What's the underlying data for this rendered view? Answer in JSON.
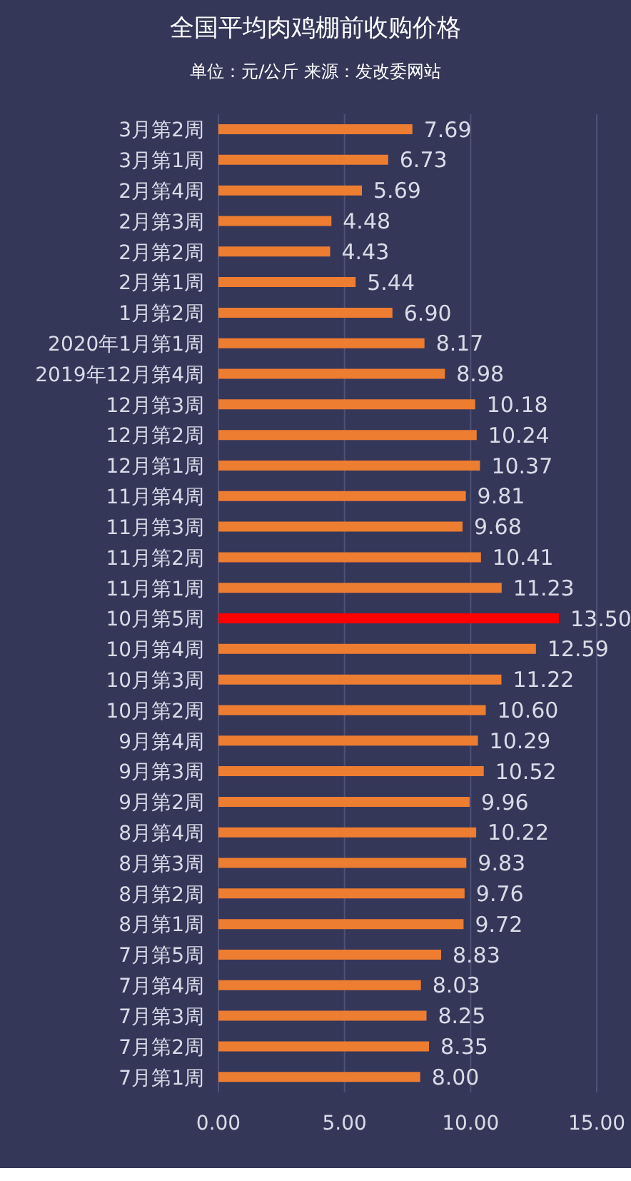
{
  "chart_data": {
    "type": "bar",
    "orientation": "horizontal",
    "title": "全国平均肉鸡棚前收购价格",
    "subtitle": "单位：元/公斤 来源：发改委网站",
    "categories": [
      "3月第2周",
      "3月第1周",
      "2月第4周",
      "2月第3周",
      "2月第2周",
      "2月第1周",
      "1月第2周",
      "2020年1月第1周",
      "2019年12月第4周",
      "12月第3周",
      "12月第2周",
      "12月第1周",
      "11月第4周",
      "11月第3周",
      "11月第2周",
      "11月第1周",
      "10月第5周",
      "10月第4周",
      "10月第3周",
      "10月第2周",
      "9月第4周",
      "9月第3周",
      "9月第2周",
      "8月第4周",
      "8月第3周",
      "8月第2周",
      "8月第1周",
      "7月第5周",
      "7月第4周",
      "7月第3周",
      "7月第2周",
      "7月第1周"
    ],
    "values": [
      7.69,
      6.73,
      5.69,
      4.48,
      4.43,
      5.44,
      6.9,
      8.17,
      8.98,
      10.18,
      10.24,
      10.37,
      9.81,
      9.68,
      10.41,
      11.23,
      13.5,
      12.59,
      11.22,
      10.6,
      10.29,
      10.52,
      9.96,
      10.22,
      9.83,
      9.76,
      9.72,
      8.83,
      8.03,
      8.25,
      8.35,
      8.0
    ],
    "value_labels": [
      "7.69",
      "6.73",
      "5.69",
      "4.48",
      "4.43",
      "5.44",
      "6.90",
      "8.17",
      "8.98",
      "10.18",
      "10.24",
      "10.37",
      "9.81",
      "9.68",
      "10.41",
      "11.23",
      "13.50",
      "12.59",
      "11.22",
      "10.60",
      "10.29",
      "10.52",
      "9.96",
      "10.22",
      "9.83",
      "9.76",
      "9.72",
      "8.83",
      "8.03",
      "8.25",
      "8.35",
      "8.00"
    ],
    "colors": [
      "#ed7d31",
      "#ed7d31",
      "#ed7d31",
      "#ed7d31",
      "#ed7d31",
      "#ed7d31",
      "#ed7d31",
      "#ed7d31",
      "#ed7d31",
      "#ed7d31",
      "#ed7d31",
      "#ed7d31",
      "#ed7d31",
      "#ed7d31",
      "#ed7d31",
      "#ed7d31",
      "#ff0000",
      "#ed7d31",
      "#ed7d31",
      "#ed7d31",
      "#ed7d31",
      "#ed7d31",
      "#ed7d31",
      "#ed7d31",
      "#ed7d31",
      "#ed7d31",
      "#ed7d31",
      "#ed7d31",
      "#ed7d31",
      "#ed7d31",
      "#ed7d31",
      "#ed7d31"
    ],
    "xlim": [
      0,
      15
    ],
    "xticks": [
      {
        "value": 0,
        "label": "0.00"
      },
      {
        "value": 5,
        "label": "5.00"
      },
      {
        "value": 10,
        "label": "10.00"
      },
      {
        "value": 15,
        "label": "15.00"
      }
    ],
    "grid": "x"
  }
}
